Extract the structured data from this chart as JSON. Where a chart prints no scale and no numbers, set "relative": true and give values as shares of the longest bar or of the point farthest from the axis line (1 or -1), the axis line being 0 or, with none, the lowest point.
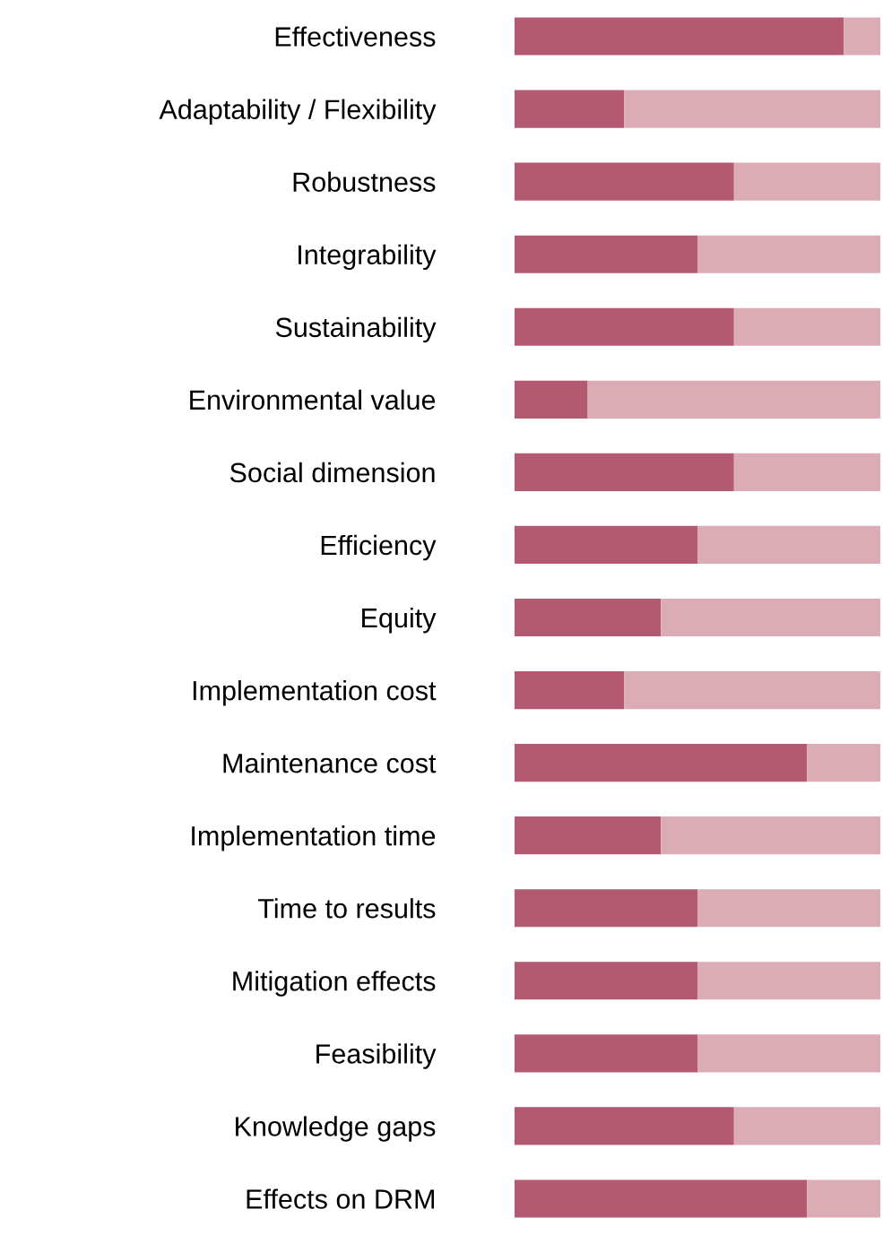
{
  "chart_data": {
    "type": "bar",
    "orientation": "horizontal",
    "stacked": true,
    "relative": true,
    "tick_labels": "y",
    "grid": false,
    "categories": [
      "Effectiveness",
      "Adaptability / Flexibility",
      "Robustness",
      "Integrability",
      "Sustainability",
      "Environmental value",
      "Social dimension",
      "Efficiency",
      "Equity",
      "Implementation cost",
      "Maintenance cost",
      "Implementation time",
      "Time to results",
      "Mitigation effects",
      "Feasibility",
      "Knowledge gaps",
      "Effects on DRM"
    ],
    "series": [
      {
        "color": "#b35a72",
        "values": [
          0.9,
          0.3,
          0.6,
          0.5,
          0.6,
          0.2,
          0.6,
          0.5,
          0.4,
          0.3,
          0.8,
          0.4,
          0.5,
          0.5,
          0.5,
          0.6,
          0.8
        ]
      },
      {
        "color": "#dbabb6",
        "values": [
          0.1,
          0.7,
          0.4,
          0.5,
          0.4,
          0.8,
          0.4,
          0.5,
          0.6,
          0.7,
          0.2,
          0.6,
          0.5,
          0.5,
          0.5,
          0.4,
          0.2
        ]
      }
    ]
  }
}
